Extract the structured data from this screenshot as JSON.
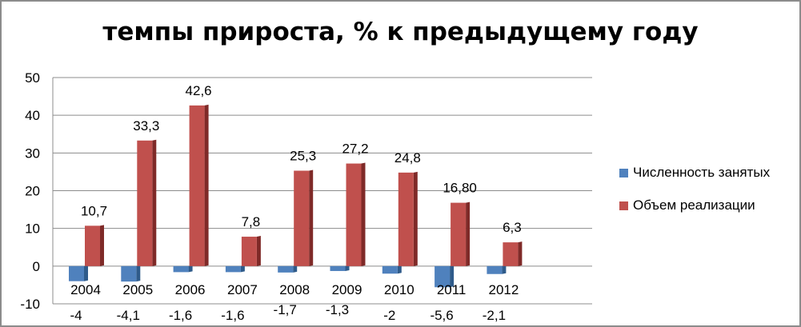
{
  "chart_data": {
    "type": "bar",
    "title": "темпы прироста, % к предыдущему году",
    "categories": [
      "2004",
      "2005",
      "2006",
      "2007",
      "2008",
      "2009",
      "2010",
      "2011",
      "2012"
    ],
    "series": [
      {
        "name": "Численность занятых",
        "color": "#4f81bd",
        "values": [
          -4,
          -4.1,
          -1.6,
          -1.6,
          -1.7,
          -1.3,
          -2,
          -5.6,
          -2.1
        ],
        "labels": [
          "-4",
          "-4,1",
          "-1,6",
          "-1,6",
          "-1,7",
          "-1,3",
          "-2",
          "-5,6",
          "-2,1"
        ]
      },
      {
        "name": "Объем реализации",
        "color": "#c0504d",
        "values": [
          10.7,
          33.3,
          42.6,
          7.8,
          25.3,
          27.2,
          24.8,
          16.8,
          6.3
        ],
        "labels": [
          "10,7",
          "33,3",
          "42,6",
          "7,8",
          "25,3",
          "27,2",
          "24,8",
          "16,80",
          "6,3"
        ]
      }
    ],
    "ylim": [
      -10,
      50
    ],
    "yticks": [
      -10,
      0,
      10,
      20,
      30,
      40,
      50
    ],
    "grid": true,
    "legend_position": "right"
  }
}
